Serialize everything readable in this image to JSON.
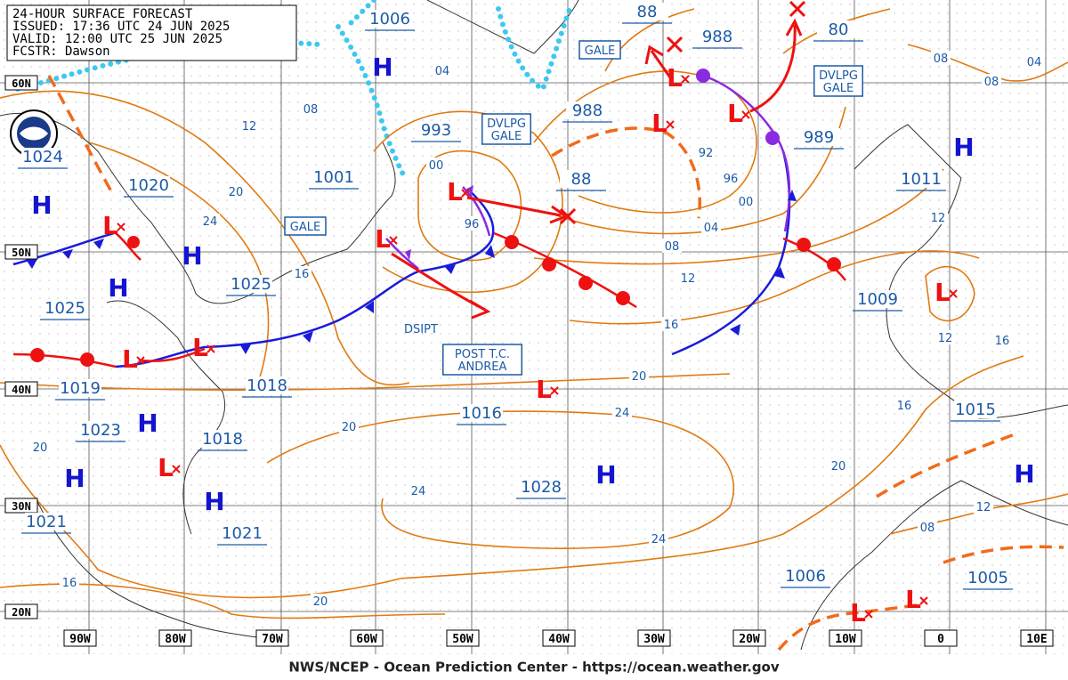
{
  "header": {
    "title": "24-HOUR SURFACE FORECAST",
    "issued": "ISSUED: 17:36 UTC 24 JUN 2025",
    "valid": "VALID: 12:00 UTC 25 JUN 2025",
    "forecaster": "FCSTR: Dawson"
  },
  "footer": "NWS/NCEP - Ocean Prediction Center - https://ocean.weather.gov",
  "latitude_labels": [
    "60N",
    "50N",
    "40N",
    "30N",
    "20N"
  ],
  "longitude_labels": [
    "90W",
    "80W",
    "70W",
    "60W",
    "50W",
    "40W",
    "30W",
    "20W",
    "10W",
    "0",
    "10E"
  ],
  "pressure_labels": [
    "1006",
    "1024",
    "1020",
    "1001",
    "993",
    "988",
    "88",
    "88",
    "988",
    "80",
    "989",
    "1011",
    "1025",
    "1025",
    "1009",
    "1019",
    "1018",
    "1023",
    "1016",
    "1018",
    "1028",
    "1015",
    "1021",
    "1021",
    "1006",
    "1005"
  ],
  "isobar_labels": [
    "04",
    "08",
    "12",
    "20",
    "24",
    "16",
    "00",
    "96",
    "92",
    "96",
    "00",
    "04",
    "08",
    "12",
    "16",
    "20",
    "24",
    "20",
    "24",
    "24",
    "20",
    "16",
    "20",
    "08",
    "04",
    "08",
    "12",
    "12",
    "16",
    "16",
    "20",
    "12",
    "08"
  ],
  "boxed_labels": [
    [
      "GALE"
    ],
    [
      "DVLPG",
      "GALE"
    ],
    [
      "GALE"
    ],
    [
      "DVLPG",
      "GALE"
    ],
    [
      "POST T.C.",
      "ANDREA"
    ]
  ],
  "annotations": [
    "DSIPT"
  ],
  "high_symbol": "H",
  "low_symbol": "L"
}
